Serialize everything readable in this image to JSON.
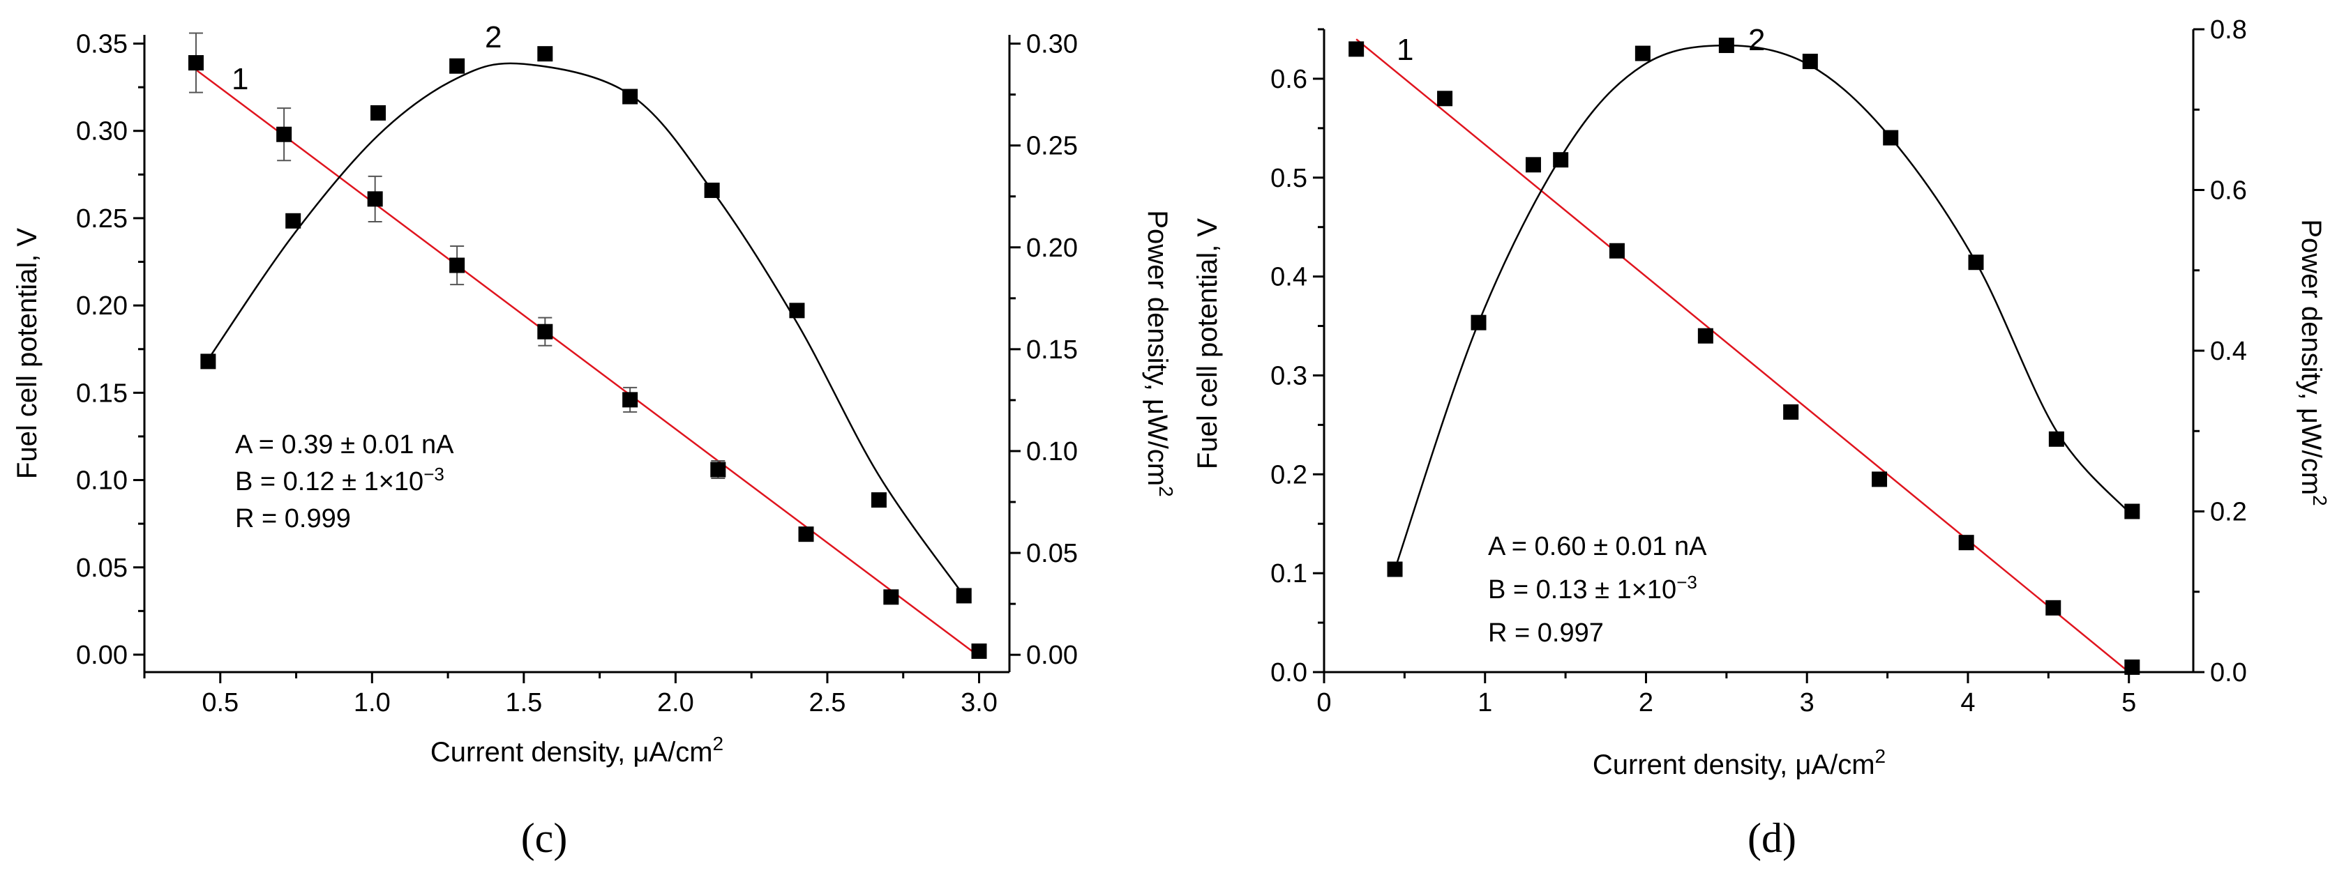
{
  "chart_data": [
    {
      "type": "scatter",
      "panel_label": "(c)",
      "xlabel_main": "Current density, μA/cm",
      "xlabel_sup": "2",
      "ylabel": "Fuel cell potential, V",
      "y2label_main": "Power density, μW/cm",
      "y2label_sup": "2",
      "xlim": [
        0.25,
        3.1
      ],
      "ylim": [
        -0.01,
        0.355
      ],
      "y2lim": [
        -0.0085,
        0.3043
      ],
      "xticks": [
        "0.5",
        "1.0",
        "1.5",
        "2.0",
        "2.5",
        "3.0"
      ],
      "yticks": [
        "0.00",
        "0.05",
        "0.10",
        "0.15",
        "0.20",
        "0.25",
        "0.30",
        "0.35"
      ],
      "y2ticks": [
        "0.00",
        "0.05",
        "0.10",
        "0.15",
        "0.20",
        "0.25",
        "0.30"
      ],
      "grid": false,
      "series": [
        {
          "name": "1",
          "axis": "left",
          "marker": "square",
          "x": [
            0.42,
            0.71,
            1.01,
            1.28,
            1.57,
            1.85,
            2.14,
            2.43,
            2.71,
            3.0
          ],
          "y": [
            0.339,
            0.298,
            0.261,
            0.223,
            0.185,
            0.146,
            0.106,
            0.069,
            0.033,
            0.002
          ],
          "err": [
            0.017,
            0.015,
            0.013,
            0.011,
            0.008,
            0.007,
            0.005,
            0.003,
            0.002,
            0.001
          ],
          "fit_line": {
            "x": [
              0.42,
              3.0
            ],
            "y": [
              0.335,
              -0.001
            ],
            "color": "#e0141e"
          }
        },
        {
          "name": "2",
          "axis": "right",
          "marker": "square",
          "x": [
            0.46,
            0.74,
            1.02,
            1.28,
            1.57,
            1.85,
            2.12,
            2.4,
            2.67,
            2.95
          ],
          "y": [
            0.144,
            0.213,
            0.266,
            0.289,
            0.295,
            0.274,
            0.228,
            0.169,
            0.076,
            0.029
          ],
          "curve": {
            "x": [
              0.46,
              0.74,
              1.02,
              1.28,
              1.5,
              1.85,
              2.12,
              2.4,
              2.67,
              2.95
            ],
            "y": [
              0.145,
              0.206,
              0.255,
              0.283,
              0.29,
              0.275,
              0.228,
              0.163,
              0.088,
              0.029
            ],
            "color": "#000000"
          }
        }
      ],
      "annotations": {
        "A": "A = 0.39 ± 0.01 nA",
        "B_main": "B = 0.12 ± 1×10",
        "B_sup": "−3",
        "R": "R = 0.999"
      }
    },
    {
      "type": "scatter",
      "panel_label": "(d)",
      "xlabel_main": "Current density, μA/cm",
      "xlabel_sup": "2",
      "ylabel": "Fuel cell potential, V",
      "y2label_main": "Power density, μW/cm",
      "y2label_sup": "2",
      "xlim": [
        0,
        5.4
      ],
      "ylim": [
        0,
        0.65
      ],
      "y2lim": [
        0,
        0.8
      ],
      "xticks": [
        "0",
        "1",
        "2",
        "3",
        "4",
        "5"
      ],
      "yticks": [
        "0.0",
        "0.1",
        "0.2",
        "0.3",
        "0.4",
        "0.5",
        "0.6"
      ],
      "y2ticks": [
        "0.0",
        "0.2",
        "0.4",
        "0.6",
        "0.8"
      ],
      "grid": false,
      "series": [
        {
          "name": "1",
          "axis": "left",
          "marker": "square",
          "x": [
            0.2,
            0.75,
            1.3,
            1.47,
            1.82,
            2.37,
            2.9,
            3.45,
            3.99,
            4.53,
            5.02
          ],
          "y": [
            0.63,
            0.58,
            0.513,
            0.518,
            0.426,
            0.34,
            0.263,
            0.195,
            0.131,
            0.065,
            0.005
          ],
          "fit_line": {
            "x": [
              0.2,
              5.0
            ],
            "y": [
              0.64,
              0.0
            ],
            "color": "#e0141e"
          }
        },
        {
          "name": "2",
          "axis": "right",
          "marker": "square",
          "x": [
            0.44,
            0.96,
            1.98,
            2.5,
            3.02,
            3.52,
            4.05,
            4.55,
            5.02
          ],
          "y": [
            0.128,
            0.435,
            0.77,
            0.78,
            0.76,
            0.665,
            0.51,
            0.29,
            0.2
          ],
          "curve": {
            "x": [
              0.44,
              0.96,
              1.5,
              1.98,
              2.5,
              3.02,
              3.52,
              4.05,
              4.55,
              5.02
            ],
            "y": [
              0.128,
              0.435,
              0.65,
              0.755,
              0.78,
              0.755,
              0.665,
              0.51,
              0.3,
              0.195
            ],
            "color": "#000000"
          }
        }
      ],
      "annotations": {
        "A": "A = 0.60 ± 0.01 nA",
        "B_main": "B = 0.13 ± 1×10",
        "B_sup": "−3",
        "R": "R = 0.997"
      }
    }
  ]
}
